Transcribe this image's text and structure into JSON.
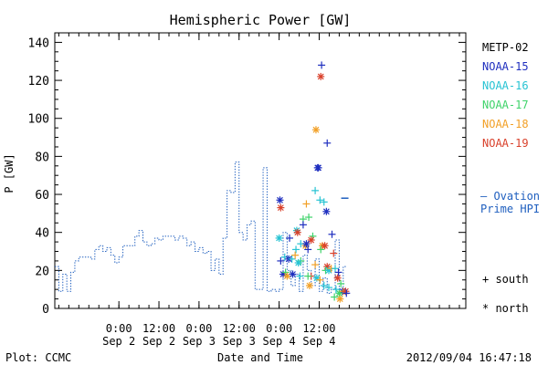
{
  "chart_data": {
    "type": "line",
    "title": "Hemispheric Power [GW]",
    "ylabel": "P [GW]",
    "xlabel": "Date and Time",
    "ylim": [
      0,
      145
    ],
    "xlim": [
      -0.8,
      4.33
    ],
    "yticks": [
      0,
      20,
      40,
      60,
      80,
      100,
      120,
      140
    ],
    "yticks_labels": [
      "0",
      "20",
      "40",
      "60",
      "80",
      "100",
      "120",
      "140"
    ],
    "xticks": [
      {
        "x": 0,
        "time": "0:00",
        "date": "Sep 2"
      },
      {
        "x": 0.5,
        "time": "12:00",
        "date": "Sep 2"
      },
      {
        "x": 1,
        "time": "0:00",
        "date": "Sep 3"
      },
      {
        "x": 1.5,
        "time": "12:00",
        "date": "Sep 3"
      },
      {
        "x": 2,
        "time": "0:00",
        "date": "Sep 4"
      },
      {
        "x": 2.5,
        "time": "12:00",
        "date": "Sep 4"
      }
    ],
    "ovation": {
      "label_line1": "— Ovation",
      "label_line2": "Prime HPI",
      "color": "#1f5fbf",
      "x": [
        -0.8,
        -0.75,
        -0.7,
        -0.65,
        -0.6,
        -0.55,
        -0.5,
        -0.45,
        -0.4,
        -0.35,
        -0.3,
        -0.25,
        -0.2,
        -0.15,
        -0.1,
        -0.05,
        0,
        0.05,
        0.1,
        0.15,
        0.2,
        0.25,
        0.3,
        0.35,
        0.4,
        0.45,
        0.5,
        0.55,
        0.6,
        0.65,
        0.7,
        0.75,
        0.8,
        0.85,
        0.9,
        0.95,
        1,
        1.05,
        1.1,
        1.15,
        1.2,
        1.25,
        1.3,
        1.35,
        1.4,
        1.45,
        1.5,
        1.55,
        1.6,
        1.65,
        1.7,
        1.75,
        1.8,
        1.85,
        1.9,
        1.95,
        2,
        2.05,
        2.1,
        2.15,
        2.2,
        2.25,
        2.3,
        2.35,
        2.4,
        2.45,
        2.5,
        2.55,
        2.6,
        2.65,
        2.7,
        2.75,
        2.8
      ],
      "y": [
        22,
        9,
        18,
        9,
        19,
        25,
        27,
        27,
        27,
        26,
        31,
        33,
        30,
        32,
        28,
        24,
        27,
        33,
        33,
        33,
        38,
        41,
        35,
        33,
        34,
        37,
        36,
        38,
        38,
        38,
        36,
        38,
        37,
        33,
        35,
        30,
        32,
        29,
        30,
        20,
        26,
        18,
        37,
        62,
        61,
        77,
        40,
        36,
        44,
        46,
        10,
        10,
        74,
        9,
        10,
        9,
        10,
        40,
        20,
        12,
        18,
        9,
        28,
        20,
        12,
        26,
        9,
        16,
        8,
        10,
        36,
        9,
        22
      ],
      "sparse_markers": [
        {
          "x": 2.82,
          "y": 58
        }
      ]
    },
    "series_legend": [
      {
        "name": "METP-02",
        "color": "#000000"
      },
      {
        "name": "NOAA-15",
        "color": "#1f2fbf"
      },
      {
        "name": "NOAA-16",
        "color": "#27c3d3"
      },
      {
        "name": "NOAA-17",
        "color": "#3fd36a"
      },
      {
        "name": "NOAA-18",
        "color": "#f2a027"
      },
      {
        "name": "NOAA-19",
        "color": "#d9412b"
      }
    ],
    "marker_legend": [
      {
        "symbol": "+",
        "label": "south"
      },
      {
        "symbol": "*",
        "label": "north"
      }
    ],
    "points": [
      {
        "sat": "NOAA-15",
        "m": "+",
        "x": 2.53,
        "y": 128
      },
      {
        "sat": "NOAA-19",
        "m": "*",
        "x": 2.52,
        "y": 122
      },
      {
        "sat": "NOAA-18",
        "m": "*",
        "x": 2.46,
        "y": 94
      },
      {
        "sat": "NOAA-15",
        "m": "+",
        "x": 2.6,
        "y": 87
      },
      {
        "sat": "NOAA-15",
        "m": "*",
        "x": 2.49,
        "y": 74
      },
      {
        "sat": "NOAA-15",
        "m": "*",
        "x": 2.48,
        "y": 74
      },
      {
        "sat": "NOAA-16",
        "m": "+",
        "x": 2.45,
        "y": 62
      },
      {
        "sat": "NOAA-16",
        "m": "+",
        "x": 2.51,
        "y": 57
      },
      {
        "sat": "NOAA-16",
        "m": "+",
        "x": 2.56,
        "y": 56
      },
      {
        "sat": "NOAA-18",
        "m": "+",
        "x": 2.34,
        "y": 55
      },
      {
        "sat": "NOAA-15",
        "m": "*",
        "x": 2.01,
        "y": 57
      },
      {
        "sat": "NOAA-19",
        "m": "*",
        "x": 2.02,
        "y": 53
      },
      {
        "sat": "NOAA-15",
        "m": "*",
        "x": 2.59,
        "y": 51
      },
      {
        "sat": "NOAA-17",
        "m": "+",
        "x": 2.3,
        "y": 47
      },
      {
        "sat": "NOAA-17",
        "m": "+",
        "x": 2.37,
        "y": 48
      },
      {
        "sat": "NOAA-15",
        "m": "+",
        "x": 2.3,
        "y": 44
      },
      {
        "sat": "NOAA-16",
        "m": "*",
        "x": 2.22,
        "y": 41
      },
      {
        "sat": "NOAA-19",
        "m": "*",
        "x": 2.23,
        "y": 40
      },
      {
        "sat": "NOAA-17",
        "m": "+",
        "x": 2.42,
        "y": 38
      },
      {
        "sat": "NOAA-16",
        "m": "*",
        "x": 2.0,
        "y": 37
      },
      {
        "sat": "NOAA-15",
        "m": "+",
        "x": 2.13,
        "y": 37
      },
      {
        "sat": "NOAA-19",
        "m": "*",
        "x": 2.4,
        "y": 36
      },
      {
        "sat": "NOAA-15",
        "m": "+",
        "x": 2.66,
        "y": 39
      },
      {
        "sat": "NOAA-18",
        "m": "*",
        "x": 2.33,
        "y": 33
      },
      {
        "sat": "NOAA-15",
        "m": "+",
        "x": 2.36,
        "y": 31
      },
      {
        "sat": "NOAA-16",
        "m": "+",
        "x": 2.27,
        "y": 34
      },
      {
        "sat": "NOAA-15",
        "m": "*",
        "x": 2.34,
        "y": 34
      },
      {
        "sat": "NOAA-18",
        "m": "*",
        "x": 2.54,
        "y": 33
      },
      {
        "sat": "NOAA-19",
        "m": "*",
        "x": 2.57,
        "y": 33
      },
      {
        "sat": "NOAA-16",
        "m": "+",
        "x": 2.21,
        "y": 31
      },
      {
        "sat": "NOAA-17",
        "m": "+",
        "x": 2.52,
        "y": 31
      },
      {
        "sat": "NOAA-19",
        "m": "+",
        "x": 2.68,
        "y": 29
      },
      {
        "sat": "NOAA-16",
        "m": "+",
        "x": 2.07,
        "y": 27
      },
      {
        "sat": "NOAA-15",
        "m": "*",
        "x": 2.12,
        "y": 26
      },
      {
        "sat": "NOAA-16",
        "m": "+",
        "x": 2.16,
        "y": 26
      },
      {
        "sat": "NOAA-18",
        "m": "+",
        "x": 2.2,
        "y": 28
      },
      {
        "sat": "NOAA-17",
        "m": "+",
        "x": 2.27,
        "y": 25
      },
      {
        "sat": "NOAA-15",
        "m": "+",
        "x": 2.02,
        "y": 25
      },
      {
        "sat": "NOAA-16",
        "m": "*",
        "x": 2.24,
        "y": 24
      },
      {
        "sat": "NOAA-18",
        "m": "+",
        "x": 2.45,
        "y": 23
      },
      {
        "sat": "NOAA-19",
        "m": "*",
        "x": 2.6,
        "y": 22
      },
      {
        "sat": "NOAA-17",
        "m": "+",
        "x": 2.58,
        "y": 20
      },
      {
        "sat": "NOAA-16",
        "m": "*",
        "x": 2.62,
        "y": 20
      },
      {
        "sat": "NOAA-18",
        "m": "+",
        "x": 2.65,
        "y": 21
      },
      {
        "sat": "NOAA-16",
        "m": "+",
        "x": 2.7,
        "y": 21
      },
      {
        "sat": "NOAA-15",
        "m": "*",
        "x": 2.05,
        "y": 18
      },
      {
        "sat": "NOAA-17",
        "m": "+",
        "x": 2.08,
        "y": 19
      },
      {
        "sat": "NOAA-18",
        "m": "*",
        "x": 2.1,
        "y": 17
      },
      {
        "sat": "NOAA-16",
        "m": "+",
        "x": 2.26,
        "y": 17
      },
      {
        "sat": "NOAA-15",
        "m": "*",
        "x": 2.17,
        "y": 18
      },
      {
        "sat": "NOAA-19",
        "m": "+",
        "x": 2.4,
        "y": 17
      },
      {
        "sat": "NOAA-17",
        "m": "+",
        "x": 2.36,
        "y": 17
      },
      {
        "sat": "NOAA-16",
        "m": "*",
        "x": 2.47,
        "y": 16
      },
      {
        "sat": "NOAA-18",
        "m": "+",
        "x": 2.51,
        "y": 15
      },
      {
        "sat": "NOAA-15",
        "m": "+",
        "x": 2.74,
        "y": 19
      },
      {
        "sat": "NOAA-19",
        "m": "*",
        "x": 2.73,
        "y": 16
      },
      {
        "sat": "NOAA-17",
        "m": "+",
        "x": 2.77,
        "y": 13
      },
      {
        "sat": "NOAA-18",
        "m": "*",
        "x": 2.38,
        "y": 12
      },
      {
        "sat": "NOAA-16",
        "m": "+",
        "x": 2.62,
        "y": 11
      },
      {
        "sat": "NOAA-15",
        "m": "*",
        "x": 2.79,
        "y": 9
      },
      {
        "sat": "NOAA-17",
        "m": "*",
        "x": 2.75,
        "y": 8
      },
      {
        "sat": "NOAA-18",
        "m": "+",
        "x": 2.8,
        "y": 9
      },
      {
        "sat": "NOAA-16",
        "m": "+",
        "x": 2.71,
        "y": 10
      },
      {
        "sat": "NOAA-19",
        "m": "*",
        "x": 2.83,
        "y": 9
      },
      {
        "sat": "NOAA-15",
        "m": "+",
        "x": 2.84,
        "y": 8
      },
      {
        "sat": "NOAA-18",
        "m": "*",
        "x": 2.76,
        "y": 5
      },
      {
        "sat": "NOAA-17",
        "m": "+",
        "x": 2.69,
        "y": 6
      },
      {
        "sat": "NOAA-16",
        "m": "+",
        "x": 2.56,
        "y": 12
      }
    ]
  },
  "footer": {
    "left": "Plot: CCMC",
    "right": "2012/09/04 16:47:18"
  }
}
